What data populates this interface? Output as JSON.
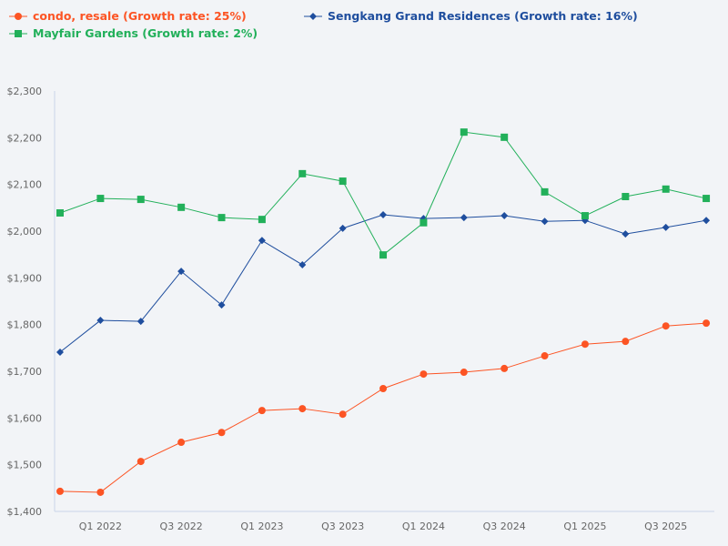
{
  "chart_data": {
    "type": "line",
    "title": "",
    "xlabel": "",
    "ylabel": "",
    "ylim": [
      1400,
      2300
    ],
    "yticks": [
      "$1,400",
      "$1,500",
      "$1,600",
      "$1,700",
      "$1,800",
      "$1,900",
      "$2,000",
      "$2,100",
      "$2,200",
      "$2,300"
    ],
    "ytick_values": [
      1400,
      1500,
      1600,
      1700,
      1800,
      1900,
      2000,
      2100,
      2200,
      2300
    ],
    "x": [
      "Q4 2021",
      "Q1 2022",
      "Q2 2022",
      "Q3 2022",
      "Q4 2022",
      "Q1 2023",
      "Q2 2023",
      "Q3 2023",
      "Q4 2023",
      "Q1 2024",
      "Q2 2024",
      "Q3 2024",
      "Q4 2024",
      "Q1 2025",
      "Q2 2025",
      "Q3 2025",
      "Q4 2025"
    ],
    "xtick_labels": [
      "Q1 2022",
      "Q3 2022",
      "Q1 2023",
      "Q3 2023",
      "Q1 2024",
      "Q3 2024",
      "Q1 2025",
      "Q3 2025"
    ],
    "grid": false,
    "legend_placement": "top",
    "series": [
      {
        "name": "condo, resale (Growth rate: 25%)",
        "color": "#fc5424",
        "marker": "circle",
        "values": [
          1443,
          1441,
          1507,
          1548,
          1569,
          1616,
          1620,
          1608,
          1663,
          1694,
          1698,
          1706,
          1733,
          1758,
          1764,
          1797,
          1803
        ]
      },
      {
        "name": "Sengkang Grand Residences (Growth rate: 16%)",
        "color": "#1f4e9e",
        "marker": "diamond",
        "values": [
          1741,
          1809,
          1807,
          1914,
          1842,
          1980,
          1928,
          2006,
          2035,
          2027,
          2029,
          2033,
          2021,
          2023,
          1994,
          2008,
          2023
        ]
      },
      {
        "name": "Mayfair Gardens (Growth rate: 2%)",
        "color": "#22b05a",
        "marker": "square",
        "values": [
          2039,
          2070,
          2068,
          2051,
          2029,
          2025,
          2123,
          2107,
          1949,
          2018,
          2212,
          2201,
          2084,
          2033,
          2074,
          2090,
          2070
        ]
      }
    ]
  }
}
